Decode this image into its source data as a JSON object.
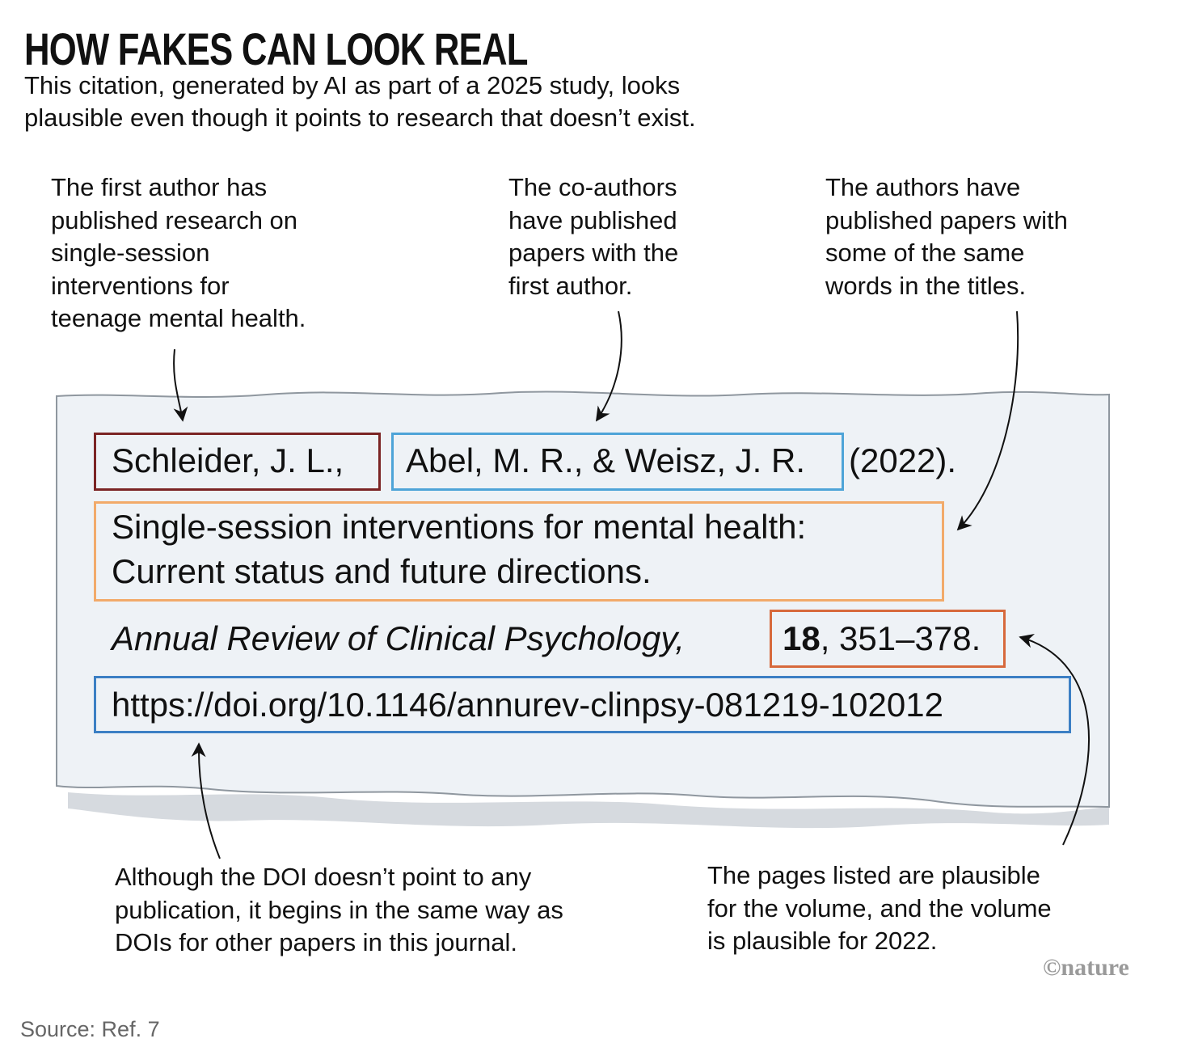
{
  "header": {
    "title": "HOW FAKES CAN LOOK REAL",
    "subtitle": [
      "This citation, generated by AI as part of a 2025 study, looks",
      "plausible even though it points to research that doesn’t exist."
    ]
  },
  "annotations": [
    [
      "The first author has",
      "published research on",
      "single-session",
      "interventions for",
      "teenage mental health."
    ],
    [
      "The co-authors",
      "have published",
      "papers with the",
      "first author."
    ],
    [
      "The authors have",
      "published papers with",
      "some of the same",
      "words in the titles."
    ],
    [
      "Although the DOI doesn’t point to any",
      "publication, it begins in the same way as",
      "DOIs for other papers in this journal."
    ],
    [
      "The pages listed are plausible",
      "for the volume, and the volume",
      "is plausible for 2022."
    ]
  ],
  "citation": {
    "first_author": "Schleider, J. L.,",
    "coauthors": "Abel, M. R., & Weisz, J. R.",
    "year": "(2022).",
    "title": [
      "Single-session interventions for mental health:",
      "Current status and future directions."
    ],
    "journal": "Annual Review of Clinical Psychology,",
    "volume": "18",
    "pages": ", 351–378.",
    "doi": "https://doi.org/10.1146/annurev-clinpsy-081219-102012"
  },
  "credit": "©nature",
  "source": "Source: Ref. 7"
}
